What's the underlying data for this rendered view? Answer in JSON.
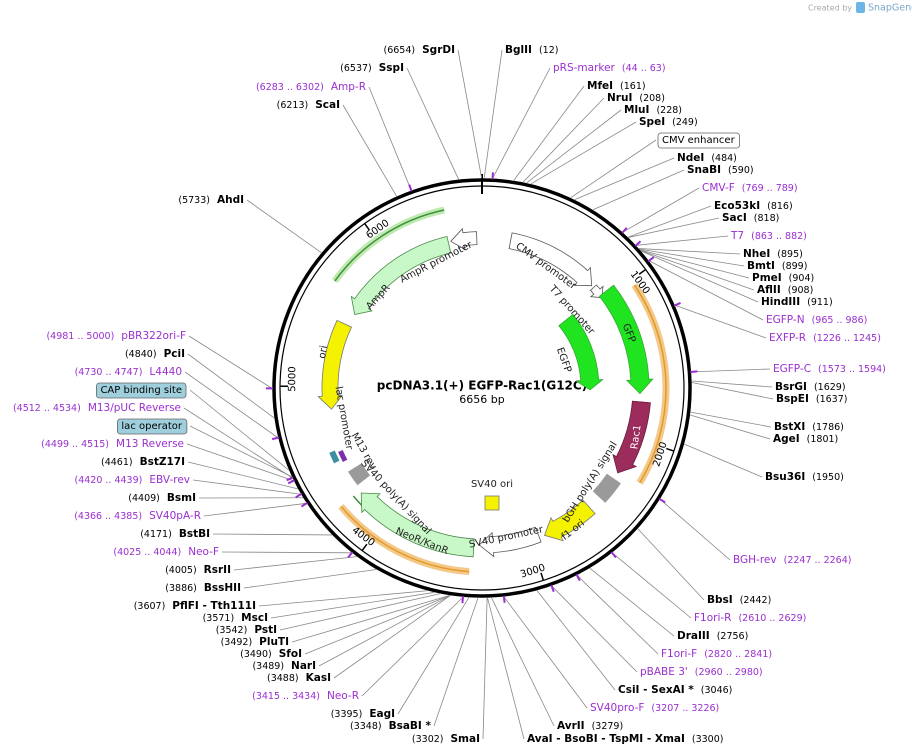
{
  "header": {
    "credit": "Created by",
    "brand": "SnapGene"
  },
  "map": {
    "name": "pcDNA3.1(+) EGFP-Rac1(G12C)",
    "length": "6656 bp",
    "ticks": [
      1000,
      2000,
      3000,
      4000,
      5000,
      6000
    ]
  },
  "features": [
    "AmpR promoter",
    "AmpR",
    "ori",
    "CMV promoter",
    "T7 promoter",
    "EGFP",
    "GFP",
    "Rac1",
    "bGH poly(A) signal",
    "f1 ori",
    "SV40 promoter",
    "SV40 ori",
    "NeoR/KanR",
    "SV40 poly(A) signal",
    "lac promoter",
    "M13 rev"
  ],
  "boxed_features": [
    "CMV enhancer",
    "CAP binding site",
    "lac operator"
  ],
  "sites": [
    {
      "name": "BglII",
      "position": "(12)"
    },
    {
      "name": "MfeI",
      "position": "(161)"
    },
    {
      "name": "NruI",
      "position": "(208)"
    },
    {
      "name": "MluI",
      "position": "(228)"
    },
    {
      "name": "SpeI",
      "position": "(249)"
    },
    {
      "name": "NdeI",
      "position": "(484)"
    },
    {
      "name": "SnaBI",
      "position": "(590)"
    },
    {
      "name": "Eco53kI",
      "position": "(816)"
    },
    {
      "name": "SacI",
      "position": "(818)"
    },
    {
      "name": "NheI",
      "position": "(895)"
    },
    {
      "name": "BmtI",
      "position": "(899)"
    },
    {
      "name": "PmeI",
      "position": "(904)"
    },
    {
      "name": "AflII",
      "position": "(908)"
    },
    {
      "name": "HindIII",
      "position": "(911)"
    },
    {
      "name": "BsrGI",
      "position": "(1629)"
    },
    {
      "name": "BspEI",
      "position": "(1637)"
    },
    {
      "name": "BstXI",
      "position": "(1786)"
    },
    {
      "name": "AgeI",
      "position": "(1801)"
    },
    {
      "name": "Bsu36I",
      "position": "(1950)"
    },
    {
      "name": "BbsI",
      "position": "(2442)"
    },
    {
      "name": "DraIII",
      "position": "(2756)"
    },
    {
      "name": "CsiI - SexAI *",
      "position": "(3046)"
    },
    {
      "name": "AvrII",
      "position": "(3279)"
    },
    {
      "name": "AvaI - BsoBI - TspMI - XmaI",
      "position": "(3300)"
    },
    {
      "name": "SmaI",
      "position": "(3302)"
    },
    {
      "name": "BsaBI *",
      "position": "(3348)"
    },
    {
      "name": "EagI",
      "position": "(3395)"
    },
    {
      "name": "KasI",
      "position": "(3488)"
    },
    {
      "name": "NarI",
      "position": "(3489)"
    },
    {
      "name": "SfoI",
      "position": "(3490)"
    },
    {
      "name": "PluTI",
      "position": "(3492)"
    },
    {
      "name": "PstI",
      "position": "(3542)"
    },
    {
      "name": "MscI",
      "position": "(3571)"
    },
    {
      "name": "PflFI - Tth111I",
      "position": "(3607)"
    },
    {
      "name": "BssHII",
      "position": "(3886)"
    },
    {
      "name": "RsrII",
      "position": "(4005)"
    },
    {
      "name": "BstBI",
      "position": "(4171)"
    },
    {
      "name": "BsmI",
      "position": "(4409)"
    },
    {
      "name": "BstZ17I",
      "position": "(4461)"
    },
    {
      "name": "PciI",
      "position": "(4840)"
    },
    {
      "name": "AhdI",
      "position": "(5733)"
    },
    {
      "name": "ScaI",
      "position": "(6213)"
    },
    {
      "name": "SspI",
      "position": "(6537)"
    },
    {
      "name": "SgrDI",
      "position": "(6654)"
    }
  ],
  "primers": [
    {
      "name": "pRS-marker",
      "range": "(44 .. 63)"
    },
    {
      "name": "CMV-F",
      "range": "(769 .. 789)"
    },
    {
      "name": "T7",
      "range": "(863 .. 882)"
    },
    {
      "name": "EGFP-N",
      "range": "(965 .. 986)"
    },
    {
      "name": "EXFP-R",
      "range": "(1226 .. 1245)"
    },
    {
      "name": "EGFP-C",
      "range": "(1573 .. 1594)"
    },
    {
      "name": "BGH-rev",
      "range": "(2247 .. 2264)"
    },
    {
      "name": "F1ori-R",
      "range": "(2610 .. 2629)"
    },
    {
      "name": "F1ori-F",
      "range": "(2820 .. 2841)"
    },
    {
      "name": "pBABE 3'",
      "range": "(2960 .. 2980)"
    },
    {
      "name": "SV40pro-F",
      "range": "(3207 .. 3226)"
    },
    {
      "name": "Neo-R",
      "range": "(3415 .. 3434)"
    },
    {
      "name": "Neo-F",
      "range": "(4025 .. 4044)"
    },
    {
      "name": "SV40pA-R",
      "range": "(4366 .. 4385)"
    },
    {
      "name": "EBV-rev",
      "range": "(4420 .. 4439)"
    },
    {
      "name": "M13 Reverse",
      "range": "(4499 .. 4515)"
    },
    {
      "name": "M13/pUC Reverse",
      "range": "(4512 .. 4534)"
    },
    {
      "name": "L4440",
      "range": "(4730 .. 4747)"
    },
    {
      "name": "pBR322ori-F",
      "range": "(4981 .. 5000)"
    },
    {
      "name": "Amp-R",
      "range": "(6283 .. 6302)"
    }
  ]
}
